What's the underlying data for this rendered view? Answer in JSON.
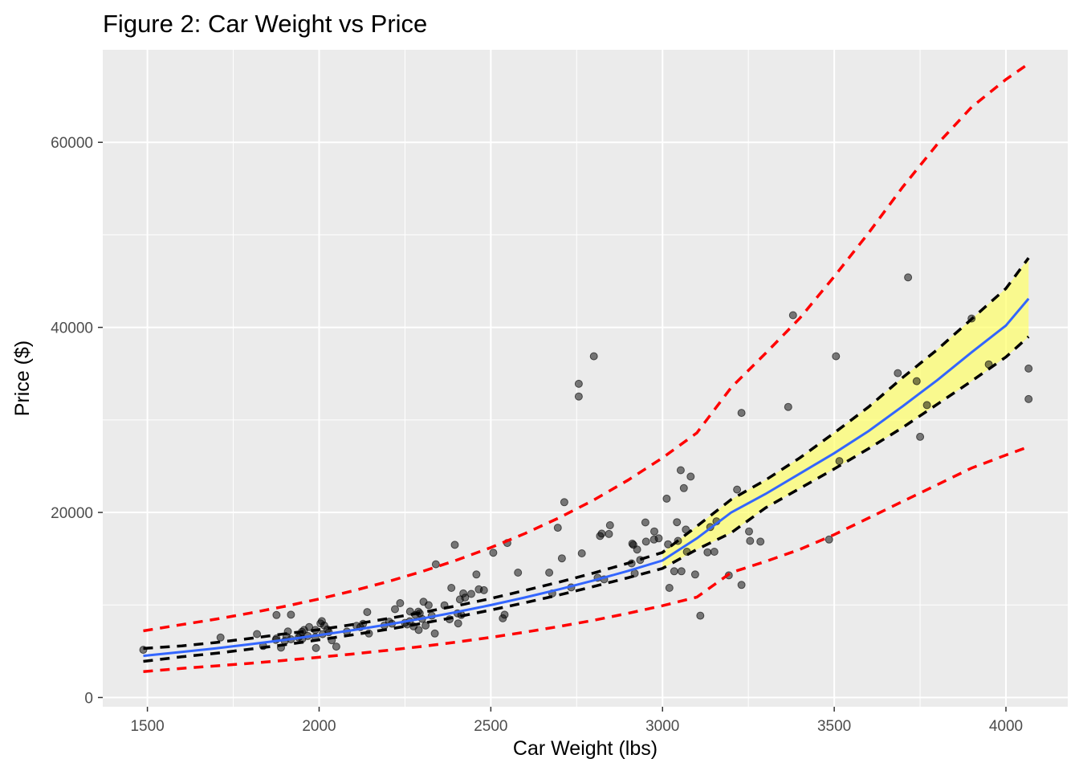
{
  "chart_data": {
    "type": "scatter",
    "title": "Figure 2: Car Weight vs Price",
    "xlabel": "Car Weight (lbs)",
    "ylabel": "Price ($)",
    "xlim": [
      1370,
      4180
    ],
    "ylim": [
      -1000,
      70000
    ],
    "x_ticks": [
      1500,
      2000,
      2500,
      3000,
      3500,
      4000
    ],
    "y_ticks": [
      0,
      20000,
      40000,
      60000
    ],
    "x_tick_labels": [
      "1500",
      "2000",
      "2500",
      "3000",
      "3500",
      "4000"
    ],
    "y_tick_labels": [
      "0",
      "20000",
      "40000",
      "60000"
    ],
    "grid": true,
    "colors": {
      "panel": "#ebebeb",
      "grid": "#ffffff",
      "points": "#000000",
      "fit_line": "#3366ff",
      "confidence_band": "#ffff66",
      "confidence_bounds": "#000000",
      "prediction_bounds": "#ff0000"
    },
    "points": [
      [
        1488,
        5151
      ],
      [
        1713,
        6479
      ],
      [
        1819,
        6855
      ],
      [
        1837,
        5572
      ],
      [
        1874,
        6229
      ],
      [
        1876,
        6377
      ],
      [
        1876,
        8916
      ],
      [
        1889,
        5389
      ],
      [
        1900,
        6095
      ],
      [
        1905,
        6575
      ],
      [
        1909,
        7129
      ],
      [
        1918,
        8949
      ],
      [
        1918,
        6295
      ],
      [
        1940,
        6488
      ],
      [
        1945,
        6692
      ],
      [
        1950,
        7099
      ],
      [
        1951,
        6338
      ],
      [
        1956,
        7295
      ],
      [
        1967,
        6649
      ],
      [
        1971,
        7609
      ],
      [
        1989,
        6529
      ],
      [
        1989,
        7299
      ],
      [
        1991,
        5348
      ],
      [
        2004,
        7999
      ],
      [
        2008,
        8249
      ],
      [
        2010,
        6849
      ],
      [
        2015,
        7775
      ],
      [
        2024,
        7349
      ],
      [
        2028,
        7053
      ],
      [
        2037,
        6189
      ],
      [
        2050,
        5499
      ],
      [
        2081,
        7126
      ],
      [
        2109,
        7738
      ],
      [
        2120,
        7603
      ],
      [
        2128,
        7957
      ],
      [
        2140,
        9233
      ],
      [
        2145,
        6918
      ],
      [
        2190,
        7788
      ],
      [
        2204,
        8195
      ],
      [
        2212,
        7975
      ],
      [
        2221,
        9549
      ],
      [
        2236,
        10198
      ],
      [
        2250,
        8058
      ],
      [
        2256,
        7898
      ],
      [
        2264,
        8238
      ],
      [
        2265,
        9298
      ],
      [
        2275,
        7689
      ],
      [
        2280,
        8921
      ],
      [
        2289,
        9279
      ],
      [
        2290,
        7295
      ],
      [
        2293,
        9095
      ],
      [
        2300,
        8495
      ],
      [
        2304,
        10345
      ],
      [
        2310,
        7775
      ],
      [
        2319,
        9980
      ],
      [
        2328,
        8845
      ],
      [
        2337,
        6918
      ],
      [
        2340,
        14399
      ],
      [
        2365,
        9960
      ],
      [
        2380,
        8449
      ],
      [
        2385,
        11845
      ],
      [
        2395,
        16500
      ],
      [
        2403,
        9095
      ],
      [
        2405,
        8013
      ],
      [
        2410,
        10595
      ],
      [
        2414,
        8921
      ],
      [
        2420,
        11248
      ],
      [
        2425,
        10795
      ],
      [
        2443,
        11199
      ],
      [
        2458,
        13295
      ],
      [
        2465,
        11694
      ],
      [
        2480,
        11595
      ],
      [
        2507,
        15645
      ],
      [
        2535,
        8558
      ],
      [
        2540,
        8948
      ],
      [
        2548,
        16695
      ],
      [
        2579,
        13499
      ],
      [
        2670,
        13499
      ],
      [
        2679,
        11245
      ],
      [
        2695,
        18344
      ],
      [
        2707,
        15040
      ],
      [
        2714,
        21105
      ],
      [
        2734,
        11900
      ],
      [
        2756,
        33900
      ],
      [
        2756,
        32528
      ],
      [
        2765,
        15580
      ],
      [
        2800,
        36880
      ],
      [
        2811,
        12940
      ],
      [
        2818,
        17450
      ],
      [
        2823,
        17710
      ],
      [
        2830,
        12764
      ],
      [
        2844,
        17669
      ],
      [
        2847,
        18620
      ],
      [
        2910,
        14489
      ],
      [
        2912,
        16630
      ],
      [
        2915,
        16500
      ],
      [
        2919,
        13415
      ],
      [
        2926,
        15998
      ],
      [
        2935,
        14869
      ],
      [
        2950,
        18920
      ],
      [
        2952,
        16845
      ],
      [
        2975,
        17075
      ],
      [
        2976,
        17950
      ],
      [
        2989,
        17199
      ],
      [
        3012,
        21485
      ],
      [
        3016,
        16558
      ],
      [
        3020,
        11850
      ],
      [
        3034,
        13645
      ],
      [
        3042,
        18950
      ],
      [
        3045,
        16925
      ],
      [
        3053,
        24565
      ],
      [
        3055,
        13645
      ],
      [
        3062,
        22625
      ],
      [
        3068,
        18150
      ],
      [
        3071,
        15750
      ],
      [
        3082,
        23875
      ],
      [
        3095,
        13295
      ],
      [
        3110,
        8845
      ],
      [
        3131,
        15690
      ],
      [
        3139,
        18420
      ],
      [
        3151,
        15750
      ],
      [
        3157,
        19045
      ],
      [
        3193,
        13200
      ],
      [
        3217,
        22470
      ],
      [
        3230,
        12170
      ],
      [
        3230,
        30760
      ],
      [
        3252,
        17950
      ],
      [
        3255,
        16925
      ],
      [
        3285,
        16845
      ],
      [
        3366,
        31400
      ],
      [
        3380,
        41315
      ],
      [
        3485,
        17075
      ],
      [
        3505,
        36880
      ],
      [
        3515,
        25552
      ],
      [
        3685,
        35056
      ],
      [
        3715,
        45400
      ],
      [
        3740,
        34184
      ],
      [
        3770,
        31600
      ],
      [
        3750,
        28176
      ],
      [
        3900,
        40960
      ],
      [
        3950,
        36000
      ],
      [
        4066,
        35550
      ],
      [
        4066,
        32250
      ]
    ],
    "fit_x": [
      1488,
      1600,
      1700,
      1800,
      1900,
      2000,
      2100,
      2200,
      2300,
      2400,
      2500,
      2600,
      2700,
      2800,
      2900,
      3000,
      3100,
      3200,
      3300,
      3400,
      3500,
      3600,
      3700,
      3800,
      3900,
      4000,
      4066
    ],
    "fit_y": [
      4500,
      4920,
      5320,
      5760,
      6230,
      6740,
      7290,
      7890,
      8530,
      9230,
      9990,
      10810,
      11700,
      12650,
      13690,
      14810,
      17200,
      20000,
      22000,
      24200,
      26400,
      28800,
      31500,
      34300,
      37300,
      40200,
      43100
    ],
    "conf_lower": [
      3900,
      4400,
      4780,
      5230,
      5700,
      6230,
      6790,
      7370,
      8010,
      8700,
      9450,
      10250,
      11090,
      12000,
      12950,
      13950,
      16000,
      17800,
      20500,
      22600,
      24700,
      26900,
      29200,
      31700,
      34200,
      36800,
      39000
    ],
    "conf_upper": [
      5300,
      5580,
      5940,
      6390,
      6880,
      7330,
      7900,
      8530,
      9190,
      9900,
      10700,
      11580,
      12480,
      13460,
      14520,
      15670,
      18500,
      21400,
      23500,
      25900,
      28600,
      31400,
      34600,
      37600,
      40900,
      44200,
      47500
    ],
    "pred_lower": [
      2800,
      3150,
      3420,
      3700,
      4020,
      4350,
      4710,
      5100,
      5520,
      5990,
      6500,
      7060,
      7680,
      8350,
      9100,
      9920,
      10850,
      13500,
      14700,
      16000,
      17600,
      19400,
      21200,
      23000,
      24800,
      26200,
      27100
    ],
    "pred_upper": [
      7200,
      7880,
      8470,
      9130,
      9850,
      10650,
      11540,
      12520,
      13620,
      14840,
      16200,
      17730,
      19440,
      21350,
      23500,
      25900,
      28600,
      33500,
      37200,
      41000,
      45500,
      50200,
      55200,
      59800,
      63800,
      66800,
      68500
    ]
  }
}
